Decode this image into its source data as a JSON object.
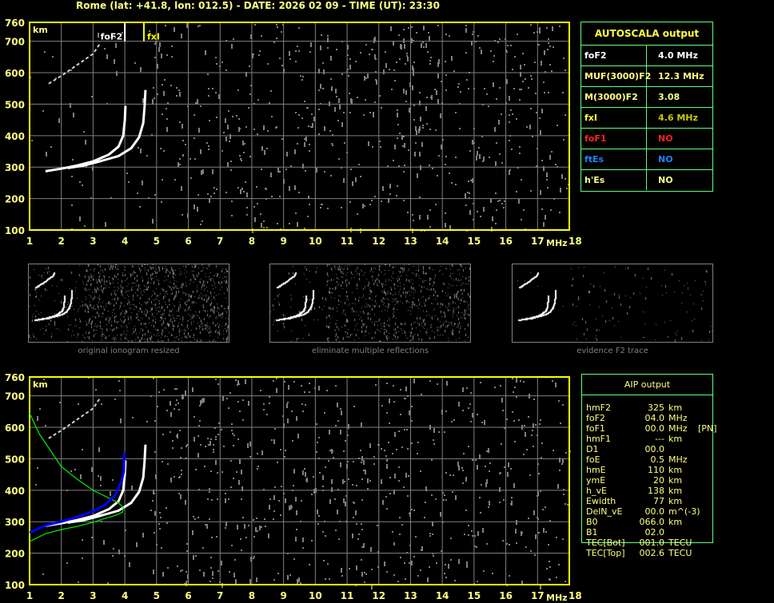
{
  "header": {
    "title": "Rome (lat: +41.8, lon: 012.5) - DATE: 2026 02 09 - TIME (UT): 23:30"
  },
  "colors": {
    "axis": "#ffff00",
    "grid": "#808080",
    "trace": "#ffffff",
    "profile": "#00e000",
    "fit": "#0000ff",
    "table_border": "#60ff80"
  },
  "chart_data": [
    {
      "type": "scatter",
      "xlabel": "MHz",
      "ylabel": "km",
      "xlim": [
        1,
        18
      ],
      "ylim": [
        100,
        760
      ],
      "xticks": [
        "1",
        "2",
        "3",
        "4",
        "5",
        "6",
        "7",
        "8",
        "9",
        "10",
        "11",
        "12",
        "13",
        "14",
        "15",
        "16",
        "17",
        "18"
      ],
      "yticks": [
        "100",
        "200",
        "300",
        "400",
        "500",
        "600",
        "700",
        "760"
      ],
      "markers": [
        {
          "label": "foF2",
          "x": 4.0
        },
        {
          "label": "fxI",
          "x": 4.6
        }
      ],
      "traces": [
        {
          "points": [
            [
              1.5,
              287
            ],
            [
              2,
              295
            ],
            [
              2.5,
              305
            ],
            [
              3,
              318
            ],
            [
              3.5,
              340
            ],
            [
              3.8,
              365
            ],
            [
              3.95,
              400
            ],
            [
              4.0,
              450
            ],
            [
              4.02,
              495
            ]
          ]
        },
        {
          "points": [
            [
              2.2,
              297
            ],
            [
              2.7,
              305
            ],
            [
              3.2,
              318
            ],
            [
              3.8,
              335
            ],
            [
              4.2,
              360
            ],
            [
              4.45,
              395
            ],
            [
              4.58,
              440
            ],
            [
              4.62,
              490
            ],
            [
              4.65,
              545
            ]
          ]
        },
        {
          "points": [
            [
              1.6,
              565
            ],
            [
              2,
              590
            ],
            [
              2.5,
              625
            ],
            [
              3,
              660
            ],
            [
              3.2,
              690
            ]
          ]
        }
      ]
    },
    {
      "type": "scatter",
      "xlabel": "MHz",
      "ylabel": "km",
      "xlim": [
        1,
        18
      ],
      "ylim": [
        100,
        760
      ],
      "xticks": [
        "1",
        "2",
        "3",
        "4",
        "5",
        "6",
        "7",
        "8",
        "9",
        "10",
        "11",
        "12",
        "13",
        "14",
        "15",
        "16",
        "17",
        "18"
      ],
      "yticks": [
        "100",
        "200",
        "300",
        "400",
        "500",
        "600",
        "700",
        "760"
      ],
      "profiles": [
        {
          "color": "#00e000",
          "points": [
            [
              1,
              645
            ],
            [
              1.3,
              580
            ],
            [
              1.7,
              520
            ],
            [
              2,
              475
            ],
            [
              2.5,
              435
            ],
            [
              3,
              400
            ],
            [
              3.5,
              375
            ],
            [
              3.8,
              360
            ],
            [
              3.95,
              345
            ],
            [
              3.93,
              330
            ],
            [
              3.7,
              320
            ],
            [
              3.3,
              308
            ],
            [
              3,
              298
            ],
            [
              2.5,
              285
            ],
            [
              2,
              275
            ],
            [
              1.5,
              262
            ],
            [
              1,
              237
            ]
          ]
        },
        {
          "color": "#0000ff",
          "points": [
            [
              1,
              265
            ],
            [
              1.5,
              288
            ],
            [
              2,
              300
            ],
            [
              2.5,
              315
            ],
            [
              3,
              333
            ],
            [
              3.4,
              355
            ],
            [
              3.7,
              385
            ],
            [
              3.9,
              430
            ],
            [
              3.97,
              460
            ],
            [
              3.98,
              520
            ]
          ]
        }
      ]
    }
  ],
  "thumbnails": [
    {
      "label": "original ionogram resized"
    },
    {
      "label": "eliminate multiple reflections"
    },
    {
      "label": "evidence F2 trace"
    }
  ],
  "autoscala": {
    "title": "AUTOSCALA output",
    "rows": [
      {
        "key": "foF2",
        "value": "4.0 MHz",
        "kcolor": "#ffffff",
        "vcolor": "#ffffff"
      },
      {
        "key": "MUF(3000)F2",
        "value": "12.3 MHz",
        "kcolor": "#ffff80",
        "vcolor": "#ffff80"
      },
      {
        "key": "M(3000)F2",
        "value": "3.08",
        "kcolor": "#ffff80",
        "vcolor": "#ffff80"
      },
      {
        "key": "fxI",
        "value": "4.6 MHz",
        "kcolor": "#ffff40",
        "vcolor": "#c8c800"
      },
      {
        "key": "foF1",
        "value": "NO",
        "kcolor": "#ff2020",
        "vcolor": "#ff2020"
      },
      {
        "key": "ftEs",
        "value": "NO",
        "kcolor": "#2080ff",
        "vcolor": "#2080ff"
      },
      {
        "key": "h'Es",
        "value": "NO",
        "kcolor": "#ffff80",
        "vcolor": "#ffff80"
      }
    ]
  },
  "aip": {
    "title": "AIP output",
    "rows": [
      {
        "k": "hmF2",
        "v": "325",
        "u": "km",
        "x": ""
      },
      {
        "k": "foF2",
        "v": "04.0",
        "u": "MHz",
        "x": ""
      },
      {
        "k": "foF1",
        "v": "00.0",
        "u": "MHz",
        "x": "[PN]"
      },
      {
        "k": "hmF1",
        "v": "---",
        "u": "km",
        "x": ""
      },
      {
        "k": "D1",
        "v": "00.0",
        "u": "",
        "x": ""
      },
      {
        "k": "foE",
        "v": "0.5",
        "u": "MHz",
        "x": ""
      },
      {
        "k": "hmE",
        "v": "110",
        "u": "km",
        "x": ""
      },
      {
        "k": "ymE",
        "v": "20",
        "u": "km",
        "x": ""
      },
      {
        "k": "h_vE",
        "v": "138",
        "u": "km",
        "x": ""
      },
      {
        "k": "Ewidth",
        "v": "77",
        "u": "km",
        "x": ""
      },
      {
        "k": "DelN_vE",
        "v": "00.0",
        "u": "m^(-3)",
        "x": ""
      },
      {
        "k": "B0",
        "v": "066.0",
        "u": "km",
        "x": ""
      },
      {
        "k": "B1",
        "v": "02.0",
        "u": "",
        "x": ""
      },
      {
        "k": "TEC[Bot]",
        "v": "001.0",
        "u": "TECU",
        "x": ""
      },
      {
        "k": "TEC[Top]",
        "v": "002.6",
        "u": "TECU",
        "x": ""
      }
    ]
  }
}
